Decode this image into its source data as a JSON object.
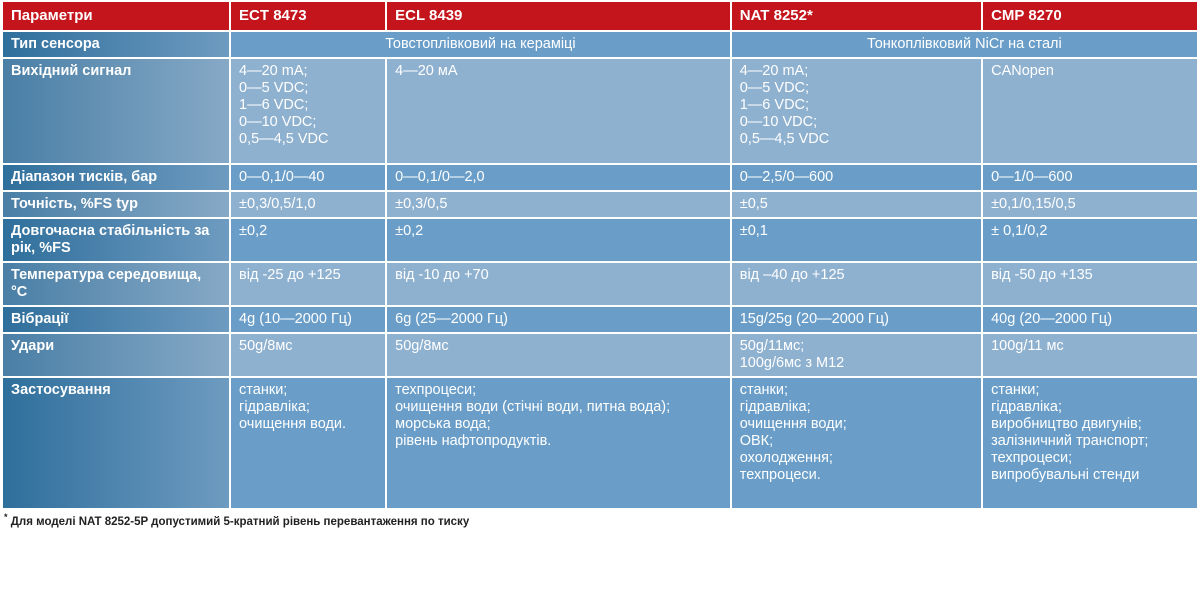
{
  "header": {
    "param": "Параметри",
    "models": [
      "ECT 8473",
      "ECL 8439",
      "NAT 8252*",
      "CMP 8270"
    ]
  },
  "rows": [
    {
      "label": "Тип сенсора",
      "merged": [
        "Товстоплівковий на кераміці",
        "Тонкоплівковий NiCr на сталі"
      ]
    },
    {
      "label": "Вихідний сигнал",
      "cells": [
        "4—20 mA;\n0—5 VDC;\n1—6 VDC;\n0—10 VDC;\n0,5—4,5 VDC",
        "4—20 мА",
        "4—20 mA;\n0—5 VDC;\n1—6 VDC;\n0—10 VDC;\n0,5—4,5 VDC",
        "CANopen"
      ]
    },
    {
      "label": "Діапазон тисків, бар",
      "cells": [
        "0—0,1/0—40",
        "0—0,1/0—2,0",
        "0—2,5/0—600",
        "0—1/0—600"
      ]
    },
    {
      "label": "Точність, %FS typ",
      "cells": [
        "±0,3/0,5/1,0",
        "±0,3/0,5",
        "±0,5",
        " ±0,1/0,15/0,5"
      ]
    },
    {
      "label": "Довгочасна стабільність за рік, %FS",
      "cells": [
        "±0,2",
        "±0,2",
        " ±0,1",
        "± 0,1/0,2"
      ]
    },
    {
      "label": "Температура середовища, °C",
      "cells": [
        "від -25 до +125",
        "від -10 до +70",
        "від –40 до +125",
        "від -50 до +135"
      ]
    },
    {
      "label": "Вібрації",
      "cells": [
        "4g (10—2000 Гц)",
        "6g (25—2000 Гц)",
        "15g/25g (20—2000 Гц)",
        "40g (20—2000 Гц)"
      ]
    },
    {
      "label": "Удари",
      "cells": [
        "50g/8мс",
        "50g/8мс",
        "50g/11мс;\n100g/6мс з M12",
        "100g/11 мс"
      ]
    },
    {
      "label": "Застосування",
      "cells": [
        "станки;\nгідравліка;\nочищення води.",
        "техпроцеси;\nочищення води (стічні води, питна вода);\nморська вода;\nрівень нафтопродуктів.",
        "станки;\nгідравліка;\nочищення води;\nОВК;\nохолодження;\nтехпроцеси.",
        "станки;\nгідравліка;\nвиробництво двигунів;\nзалізничний транспорт;\nтехпроцеси;\nвипробувальні стенди"
      ]
    }
  ],
  "footnote": {
    "mark": "*",
    "text": " Для моделі NAT 8252-5P  допустимий 5-кратний рівень перевантаження по тиску"
  }
}
